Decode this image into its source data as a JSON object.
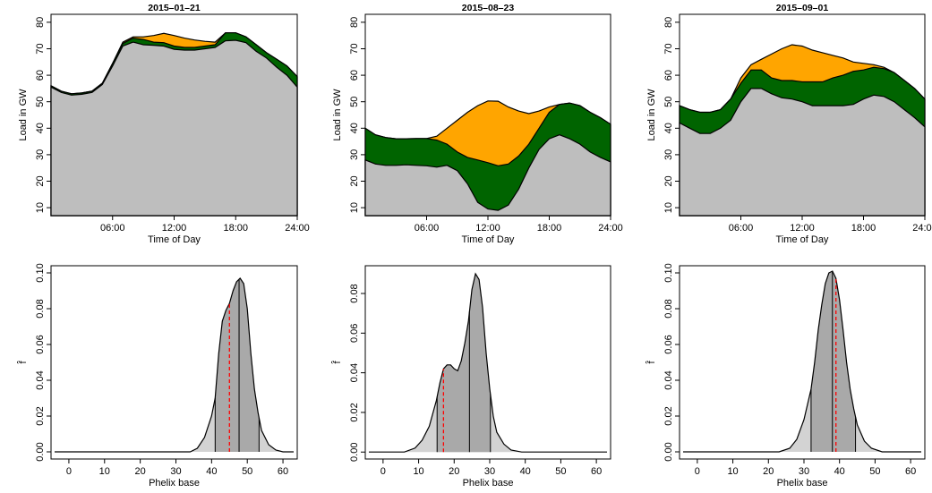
{
  "chart_data": [
    {
      "type": "area",
      "title": "2015–01–21",
      "xlabel": "Time of Day",
      "ylabel": "Load in GW",
      "xticks": [
        "06:00",
        "12:00",
        "18:00",
        "24:00"
      ],
      "xtick_hours": [
        6,
        12,
        18,
        24
      ],
      "yticks": [
        10,
        20,
        30,
        40,
        50,
        60,
        70,
        80
      ],
      "xlim": [
        0,
        24
      ],
      "ylim": [
        7,
        83
      ],
      "hours": [
        0,
        1,
        2,
        3,
        4,
        5,
        6,
        7,
        8,
        9,
        10,
        11,
        12,
        13,
        14,
        15,
        16,
        17,
        18,
        19,
        20,
        21,
        22,
        23,
        24
      ],
      "series": [
        {
          "color": "#bebebe",
          "values": [
            55.5,
            53.5,
            52.5,
            52.8,
            53.5,
            56.5,
            63.5,
            71,
            72.5,
            71.5,
            71.3,
            71,
            69.8,
            69.5,
            69.5,
            70,
            70.5,
            73,
            73.2,
            72.3,
            69,
            66.5,
            63,
            60,
            55.5
          ]
        },
        {
          "color": "#006400",
          "values": [
            56,
            54,
            53,
            53.3,
            54,
            57,
            64.5,
            72,
            74,
            73.5,
            72.5,
            72.3,
            71,
            70.5,
            70.5,
            71,
            71.5,
            76,
            76,
            74.5,
            71.5,
            68.5,
            66,
            63.5,
            59.5
          ]
        },
        {
          "color": "#ffa500",
          "values": [
            56,
            54,
            53,
            53.3,
            54,
            57,
            64.5,
            72.5,
            74.5,
            74.5,
            75,
            75.8,
            75,
            74,
            73.3,
            72.8,
            72.5,
            76,
            76,
            74.5,
            71.5,
            68.5,
            66,
            63.5,
            59.5
          ]
        }
      ]
    },
    {
      "type": "area",
      "title": "2015–08–23",
      "xlabel": "Time of Day",
      "ylabel": "Load in GW",
      "xticks": [
        "06:00",
        "12:00",
        "18:00",
        "24:00"
      ],
      "xtick_hours": [
        6,
        12,
        18,
        24
      ],
      "yticks": [
        10,
        20,
        30,
        40,
        50,
        60,
        70,
        80
      ],
      "xlim": [
        0,
        24
      ],
      "ylim": [
        7,
        83
      ],
      "hours": [
        0,
        1,
        2,
        3,
        4,
        5,
        6,
        7,
        8,
        9,
        10,
        11,
        12,
        13,
        14,
        15,
        16,
        17,
        18,
        19,
        20,
        21,
        22,
        23,
        24
      ],
      "series": [
        {
          "color": "#bebebe",
          "values": [
            28,
            26.5,
            26,
            26,
            26.2,
            26,
            25.8,
            25.3,
            26,
            24,
            19,
            12,
            9.5,
            9,
            11,
            17,
            25,
            32,
            36,
            37.5,
            36,
            34,
            31,
            29,
            27.3
          ]
        },
        {
          "color": "#006400",
          "values": [
            40,
            37.5,
            36.5,
            36,
            36,
            36.1,
            36.1,
            35.5,
            34,
            31,
            29,
            28,
            27,
            25.8,
            26.5,
            29.5,
            34,
            40,
            46,
            49,
            49.5,
            48.5,
            46,
            44,
            41.5
          ]
        },
        {
          "color": "#ffa500",
          "values": [
            40,
            37.5,
            36.5,
            36,
            36,
            36.1,
            36.1,
            37,
            40,
            43,
            46,
            48.5,
            50.3,
            50.2,
            48,
            46.5,
            45.5,
            46.5,
            48,
            49,
            49.5,
            48.5,
            46,
            44,
            41.5
          ]
        }
      ]
    },
    {
      "type": "area",
      "title": "2015–09–01",
      "xlabel": "Time of Day",
      "ylabel": "Load in GW",
      "xticks": [
        "06:00",
        "12:00",
        "18:00",
        "24:00"
      ],
      "xtick_hours": [
        6,
        12,
        18,
        24
      ],
      "yticks": [
        10,
        20,
        30,
        40,
        50,
        60,
        70,
        80
      ],
      "xlim": [
        0,
        24
      ],
      "ylim": [
        7,
        83
      ],
      "hours": [
        0,
        1,
        2,
        3,
        4,
        5,
        6,
        7,
        8,
        9,
        10,
        11,
        12,
        13,
        14,
        15,
        16,
        17,
        18,
        19,
        20,
        21,
        22,
        23,
        24
      ],
      "series": [
        {
          "color": "#bebebe",
          "values": [
            42,
            40,
            38,
            38,
            40,
            43,
            50,
            55,
            55,
            53,
            51.5,
            51,
            50,
            48.5,
            48.5,
            48.5,
            48.5,
            49,
            51,
            52.5,
            52,
            50,
            47,
            44,
            40.5
          ]
        },
        {
          "color": "#006400",
          "values": [
            48.5,
            47,
            46,
            46,
            47,
            51,
            57,
            62,
            62,
            59,
            58,
            58,
            57.5,
            57.5,
            57.5,
            59,
            60,
            61.5,
            62,
            63,
            62.5,
            61,
            58,
            55,
            51
          ]
        },
        {
          "color": "#ffa500",
          "values": [
            48.5,
            47,
            46,
            46,
            47,
            51,
            59,
            64,
            66,
            68,
            70,
            71.5,
            71,
            69.5,
            68.5,
            67.5,
            66.5,
            65,
            64.5,
            64,
            63,
            61,
            58,
            55,
            51
          ]
        }
      ]
    },
    {
      "type": "area",
      "xlabel": "Phelix base",
      "ylabel": "f̂",
      "xticks": [
        0,
        10,
        20,
        30,
        40,
        50,
        60
      ],
      "yticks": [
        "0.00",
        "0.02",
        "0.04",
        "0.06",
        "0.08",
        "0.10"
      ],
      "xlim": [
        -5,
        64
      ],
      "ylim": [
        -0.004,
        0.104
      ],
      "density": [
        {
          "x": -4,
          "y": 0
        },
        {
          "x": 34,
          "y": 0
        },
        {
          "x": 36,
          "y": 0.002
        },
        {
          "x": 38,
          "y": 0.008
        },
        {
          "x": 40,
          "y": 0.02
        },
        {
          "x": 41,
          "y": 0.03
        },
        {
          "x": 42,
          "y": 0.055
        },
        {
          "x": 43,
          "y": 0.073
        },
        {
          "x": 44,
          "y": 0.079
        },
        {
          "x": 45,
          "y": 0.083
        },
        {
          "x": 46,
          "y": 0.09
        },
        {
          "x": 47,
          "y": 0.095
        },
        {
          "x": 48,
          "y": 0.097
        },
        {
          "x": 49,
          "y": 0.094
        },
        {
          "x": 50,
          "y": 0.08
        },
        {
          "x": 51,
          "y": 0.055
        },
        {
          "x": 52,
          "y": 0.035
        },
        {
          "x": 53,
          "y": 0.022
        },
        {
          "x": 54,
          "y": 0.012
        },
        {
          "x": 56,
          "y": 0.004
        },
        {
          "x": 58,
          "y": 0.001
        },
        {
          "x": 60,
          "y": 0
        },
        {
          "x": 63,
          "y": 0
        }
      ],
      "quantile_lines": [
        41,
        47.7,
        53.3
      ],
      "dashed_line": 45,
      "dashed_color": "#ff0000"
    },
    {
      "type": "area",
      "xlabel": "Phelix base",
      "ylabel": "f̂",
      "xticks": [
        0,
        10,
        20,
        30,
        40,
        50,
        60
      ],
      "yticks": [
        "0.00",
        "0.02",
        "0.04",
        "0.06",
        "0.08"
      ],
      "xlim": [
        -5,
        64
      ],
      "ylim": [
        -0.0035,
        0.094
      ],
      "density": [
        {
          "x": -4,
          "y": 0
        },
        {
          "x": 6,
          "y": 0
        },
        {
          "x": 9,
          "y": 0.002
        },
        {
          "x": 11,
          "y": 0.006
        },
        {
          "x": 13,
          "y": 0.013
        },
        {
          "x": 15,
          "y": 0.026
        },
        {
          "x": 16,
          "y": 0.035
        },
        {
          "x": 17,
          "y": 0.042
        },
        {
          "x": 18,
          "y": 0.044
        },
        {
          "x": 19,
          "y": 0.044
        },
        {
          "x": 20,
          "y": 0.042
        },
        {
          "x": 21,
          "y": 0.041
        },
        {
          "x": 22,
          "y": 0.046
        },
        {
          "x": 23,
          "y": 0.055
        },
        {
          "x": 24,
          "y": 0.066
        },
        {
          "x": 25,
          "y": 0.082
        },
        {
          "x": 26,
          "y": 0.09
        },
        {
          "x": 27,
          "y": 0.087
        },
        {
          "x": 28,
          "y": 0.073
        },
        {
          "x": 29,
          "y": 0.05
        },
        {
          "x": 30,
          "y": 0.032
        },
        {
          "x": 31,
          "y": 0.018
        },
        {
          "x": 32,
          "y": 0.01
        },
        {
          "x": 34,
          "y": 0.004
        },
        {
          "x": 36,
          "y": 0.001
        },
        {
          "x": 39,
          "y": 0
        },
        {
          "x": 63,
          "y": 0
        }
      ],
      "quantile_lines": [
        15.2,
        24.3,
        30.2
      ],
      "dashed_line": 17,
      "dashed_color": "#ff0000"
    },
    {
      "type": "area",
      "xlabel": "Phelix base",
      "ylabel": "f̂",
      "xticks": [
        0,
        10,
        20,
        30,
        40,
        50,
        60
      ],
      "yticks": [
        "0.00",
        "0.02",
        "0.04",
        "0.06",
        "0.08",
        "0.10"
      ],
      "xlim": [
        -5,
        64
      ],
      "ylim": [
        -0.004,
        0.104
      ],
      "density": [
        {
          "x": -4,
          "y": 0
        },
        {
          "x": 23,
          "y": 0
        },
        {
          "x": 26,
          "y": 0.002
        },
        {
          "x": 28,
          "y": 0.007
        },
        {
          "x": 30,
          "y": 0.018
        },
        {
          "x": 32,
          "y": 0.035
        },
        {
          "x": 33,
          "y": 0.05
        },
        {
          "x": 34,
          "y": 0.068
        },
        {
          "x": 35,
          "y": 0.082
        },
        {
          "x": 36,
          "y": 0.094
        },
        {
          "x": 37,
          "y": 0.1
        },
        {
          "x": 38,
          "y": 0.101
        },
        {
          "x": 39,
          "y": 0.097
        },
        {
          "x": 40,
          "y": 0.085
        },
        {
          "x": 41,
          "y": 0.068
        },
        {
          "x": 42,
          "y": 0.05
        },
        {
          "x": 43,
          "y": 0.035
        },
        {
          "x": 44,
          "y": 0.024
        },
        {
          "x": 45,
          "y": 0.015
        },
        {
          "x": 47,
          "y": 0.006
        },
        {
          "x": 49,
          "y": 0.002
        },
        {
          "x": 52,
          "y": 0
        },
        {
          "x": 63,
          "y": 0
        }
      ],
      "quantile_lines": [
        32,
        38,
        44.5
      ],
      "dashed_line": 39,
      "dashed_color": "#ff0000"
    }
  ]
}
